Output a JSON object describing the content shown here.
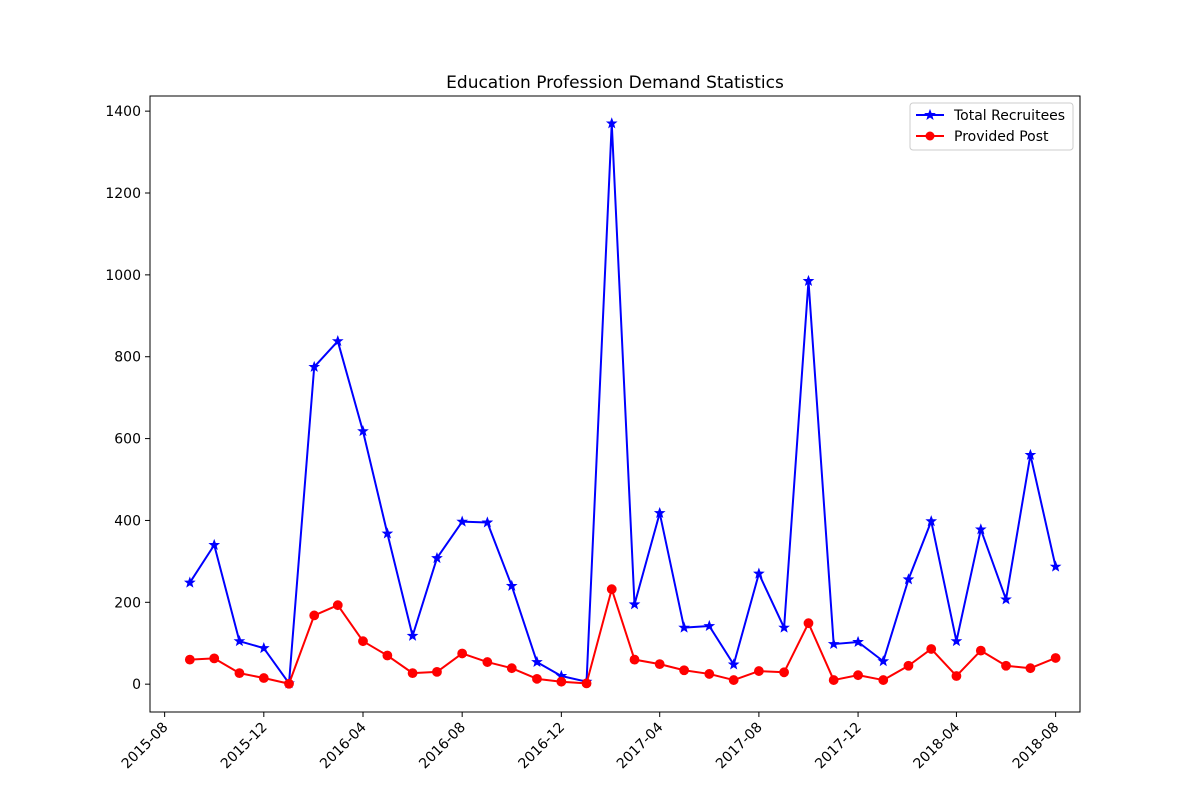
{
  "chart_data": {
    "type": "line",
    "title": "Education Profession Demand Statistics",
    "xlabel": "",
    "ylabel": "",
    "x": [
      "2015-09",
      "2015-10",
      "2015-11",
      "2015-12",
      "2016-01",
      "2016-02",
      "2016-03",
      "2016-04",
      "2016-05",
      "2016-06",
      "2016-07",
      "2016-08",
      "2016-09",
      "2016-10",
      "2016-11",
      "2016-12",
      "2017-01",
      "2017-02",
      "2017-03",
      "2017-04",
      "2017-05",
      "2017-06",
      "2017-07",
      "2017-08",
      "2017-09",
      "2017-10",
      "2017-11",
      "2017-12",
      "2018-01",
      "2018-02",
      "2018-03",
      "2018-04",
      "2018-05",
      "2018-06",
      "2018-07",
      "2018-08"
    ],
    "x_ticks": [
      "2015-08",
      "2015-12",
      "2016-04",
      "2016-08",
      "2016-12",
      "2017-04",
      "2017-08",
      "2017-12",
      "2018-04",
      "2018-08"
    ],
    "x_range": [
      "2015-07-14",
      "2018-08-31"
    ],
    "y_ticks": [
      0,
      200,
      400,
      600,
      800,
      1000,
      1200,
      1400
    ],
    "ylim": [
      -68,
      1437
    ],
    "grid": false,
    "legend_position": "top-right",
    "series": [
      {
        "name": "Total Recruitees",
        "color": "#0000ff",
        "marker": "star",
        "values": [
          248,
          340,
          105,
          88,
          2,
          775,
          838,
          618,
          368,
          118,
          308,
          397,
          395,
          240,
          54,
          20,
          6,
          1370,
          195,
          418,
          138,
          142,
          48,
          270,
          138,
          985,
          98,
          103,
          56,
          256,
          398,
          105,
          378,
          207,
          560,
          287
        ]
      },
      {
        "name": "Provided Post",
        "color": "#ff0000",
        "marker": "circle",
        "values": [
          60,
          63,
          27,
          15,
          1,
          168,
          193,
          105,
          70,
          27,
          30,
          75,
          54,
          39,
          13,
          6,
          2,
          232,
          60,
          49,
          34,
          25,
          10,
          32,
          29,
          149,
          10,
          22,
          10,
          45,
          86,
          20,
          82,
          45,
          39,
          64
        ]
      }
    ]
  }
}
